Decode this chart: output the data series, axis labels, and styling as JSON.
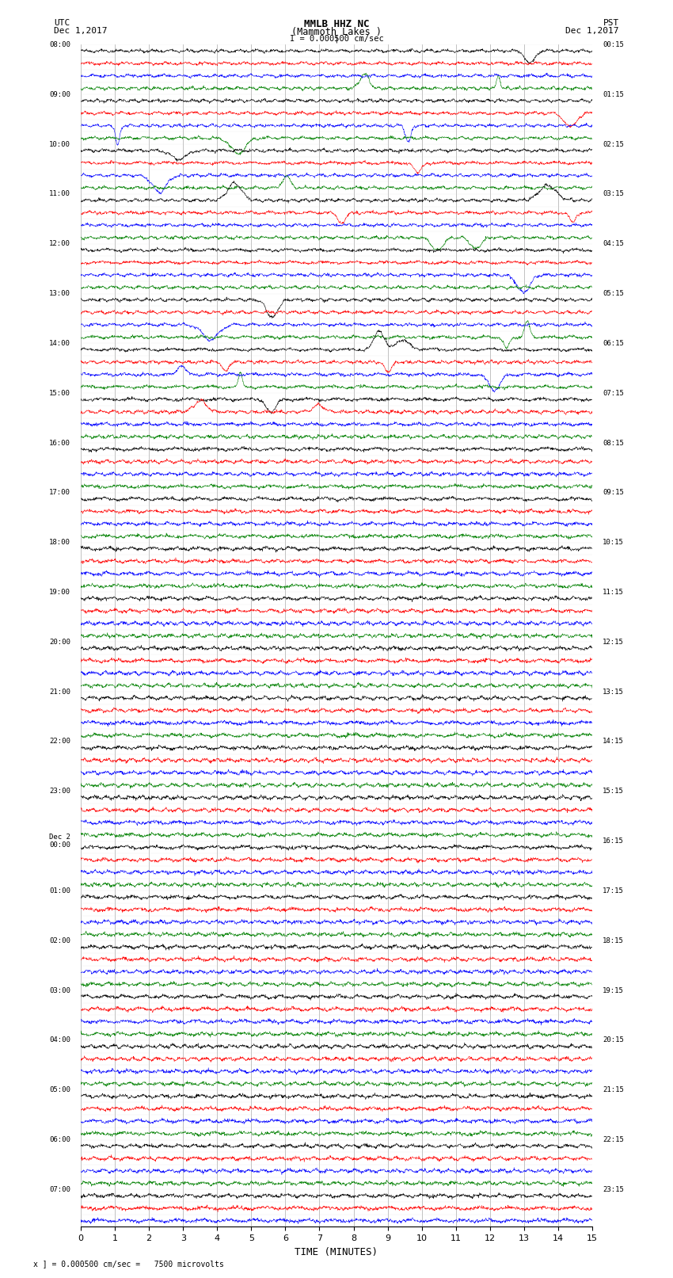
{
  "title_line1": "MMLB HHZ NC",
  "title_line2": "(Mammoth Lakes )",
  "title_line3": "I = 0.000500 cm/sec",
  "label_left": "UTC\nDec 1,2017",
  "label_right": "PST\nDec 1,2017",
  "xlabel": "TIME (MINUTES)",
  "footer": "x ] = 0.000500 cm/sec =   7500 microvolts",
  "xlim": [
    0,
    15
  ],
  "xticks": [
    0,
    1,
    2,
    3,
    4,
    5,
    6,
    7,
    8,
    9,
    10,
    11,
    12,
    13,
    14,
    15
  ],
  "background_color": "#ffffff",
  "grid_color": "#aaaaaa",
  "trace_colors": [
    "black",
    "red",
    "blue",
    "green"
  ],
  "utc_labels": [
    "08:00",
    "",
    "",
    "",
    "09:00",
    "",
    "",
    "",
    "10:00",
    "",
    "",
    "",
    "11:00",
    "",
    "",
    "",
    "12:00",
    "",
    "",
    "",
    "13:00",
    "",
    "",
    "",
    "14:00",
    "",
    "",
    "",
    "15:00",
    "",
    "",
    "",
    "16:00",
    "",
    "",
    "",
    "17:00",
    "",
    "",
    "",
    "18:00",
    "",
    "",
    "",
    "19:00",
    "",
    "",
    "",
    "20:00",
    "",
    "",
    "",
    "21:00",
    "",
    "",
    "",
    "22:00",
    "",
    "",
    "",
    "23:00",
    "",
    "",
    "",
    "Dec 2\n00:00",
    "",
    "",
    "",
    "01:00",
    "",
    "",
    "",
    "02:00",
    "",
    "",
    "",
    "03:00",
    "",
    "",
    "",
    "04:00",
    "",
    "",
    "",
    "05:00",
    "",
    "",
    "",
    "06:00",
    "",
    "",
    "",
    "07:00",
    "",
    ""
  ],
  "pst_labels": [
    "00:15",
    "",
    "",
    "",
    "01:15",
    "",
    "",
    "",
    "02:15",
    "",
    "",
    "",
    "03:15",
    "",
    "",
    "",
    "04:15",
    "",
    "",
    "",
    "05:15",
    "",
    "",
    "",
    "06:15",
    "",
    "",
    "",
    "07:15",
    "",
    "",
    "",
    "08:15",
    "",
    "",
    "",
    "09:15",
    "",
    "",
    "",
    "10:15",
    "",
    "",
    "",
    "11:15",
    "",
    "",
    "",
    "12:15",
    "",
    "",
    "",
    "13:15",
    "",
    "",
    "",
    "14:15",
    "",
    "",
    "",
    "15:15",
    "",
    "",
    "",
    "16:15",
    "",
    "",
    "",
    "17:15",
    "",
    "",
    "",
    "18:15",
    "",
    "",
    "",
    "19:15",
    "",
    "",
    "",
    "20:15",
    "",
    "",
    "",
    "21:15",
    "",
    "",
    "",
    "22:15",
    "",
    "",
    "",
    "23:15",
    "",
    ""
  ],
  "n_rows": 95,
  "n_traces_per_hour": 4,
  "seed": 42
}
